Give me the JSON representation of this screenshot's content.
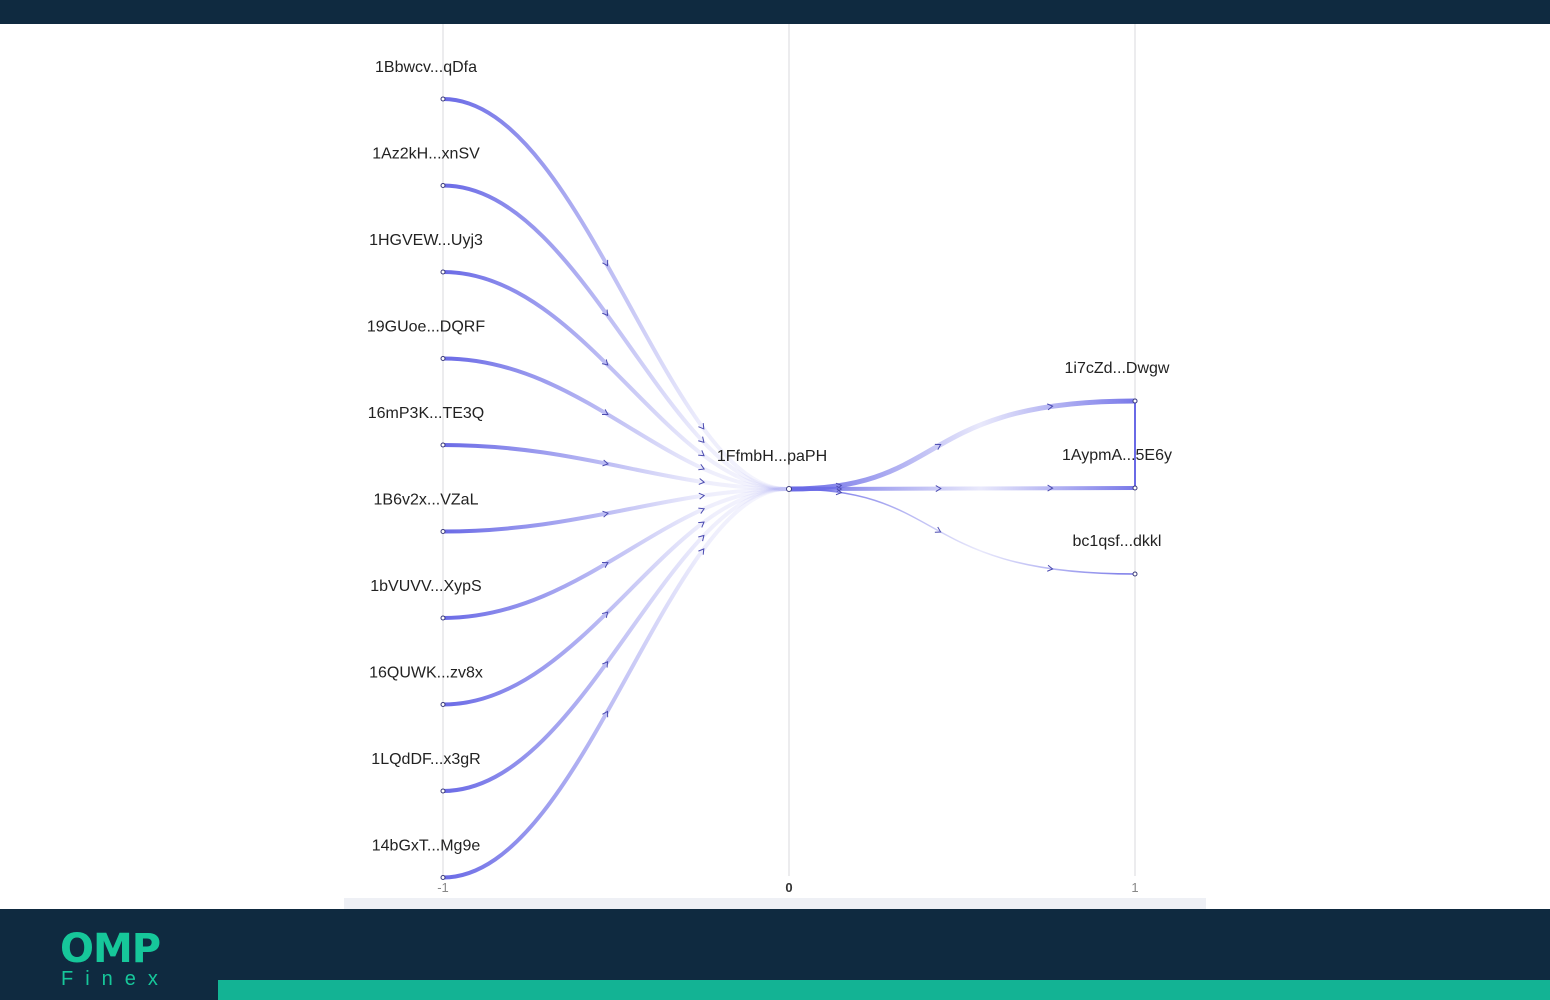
{
  "chart_data": {
    "type": "sankey",
    "x_axis": {
      "ticks": [
        "-1",
        "0",
        "1"
      ]
    },
    "inputs": [
      "1Bbwcv...qDfa",
      "1Az2kH...xnSV",
      "1HGVEW...Uyj3",
      "19GUoe...DQRF",
      "16mP3K...TE3Q",
      "1B6v2x...VZaL",
      "1bVUVV...XypS",
      "16QUWK...zv8x",
      "1LQdDF...x3gR",
      "14bGxT...Mg9e"
    ],
    "center": "1FfmbH...paPH",
    "outputs": [
      "1i7cZd...Dwgw",
      "1AypmA...5E6y",
      "bc1qsf...dkkl"
    ],
    "flow_color": "#6a6ae6"
  },
  "brand": {
    "logo_text": "OMP",
    "logo_subtext": "Finex",
    "logo_color": "#16c79a",
    "stripe_color": "#13b394",
    "bar_color": "#0f2a40"
  }
}
